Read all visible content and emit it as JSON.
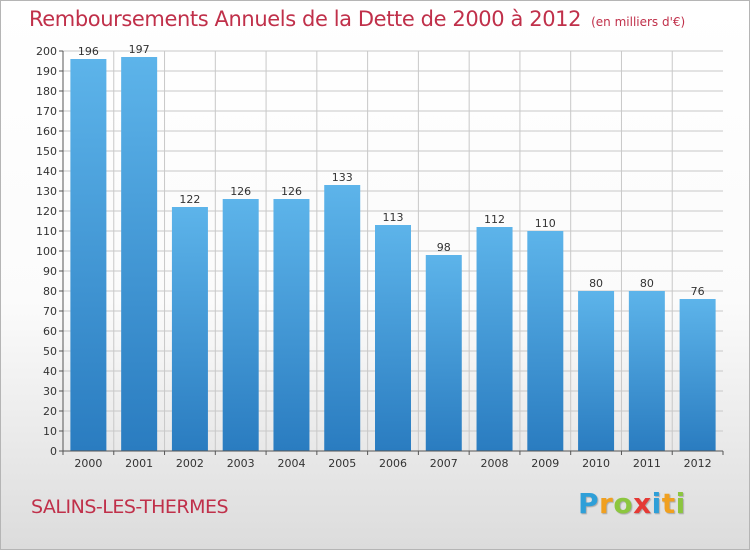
{
  "header": {
    "title": "Remboursements Annuels de la Dette de 2000 à 2012",
    "subtitle": "(en milliers d'€)"
  },
  "footer": {
    "place": "SALINS-LES-THERMES",
    "logo_text": "Proxiti",
    "logo_letters": [
      {
        "ch": "P",
        "color": "#2e9fd8"
      },
      {
        "ch": "r",
        "color": "#f0a020"
      },
      {
        "ch": "o",
        "color": "#8cc63f"
      },
      {
        "ch": "x",
        "color": "#e53935"
      },
      {
        "ch": "i",
        "color": "#2e9fd8"
      },
      {
        "ch": "t",
        "color": "#f0a020"
      },
      {
        "ch": "i",
        "color": "#8cc63f"
      }
    ]
  },
  "chart_data": {
    "type": "bar",
    "categories": [
      "2000",
      "2001",
      "2002",
      "2003",
      "2004",
      "2005",
      "2006",
      "2007",
      "2008",
      "2009",
      "2010",
      "2011",
      "2012"
    ],
    "values": [
      196,
      197,
      122,
      126,
      126,
      133,
      113,
      98,
      112,
      110,
      80,
      80,
      76
    ],
    "ylim": [
      0,
      200
    ],
    "ytick_step": 10,
    "grid": true,
    "colors": {
      "bar_top": "#5db4ea",
      "bar_bottom": "#2a7cc0",
      "grid": "#c8c8c8",
      "axis": "#555555",
      "text": "#333333"
    }
  }
}
